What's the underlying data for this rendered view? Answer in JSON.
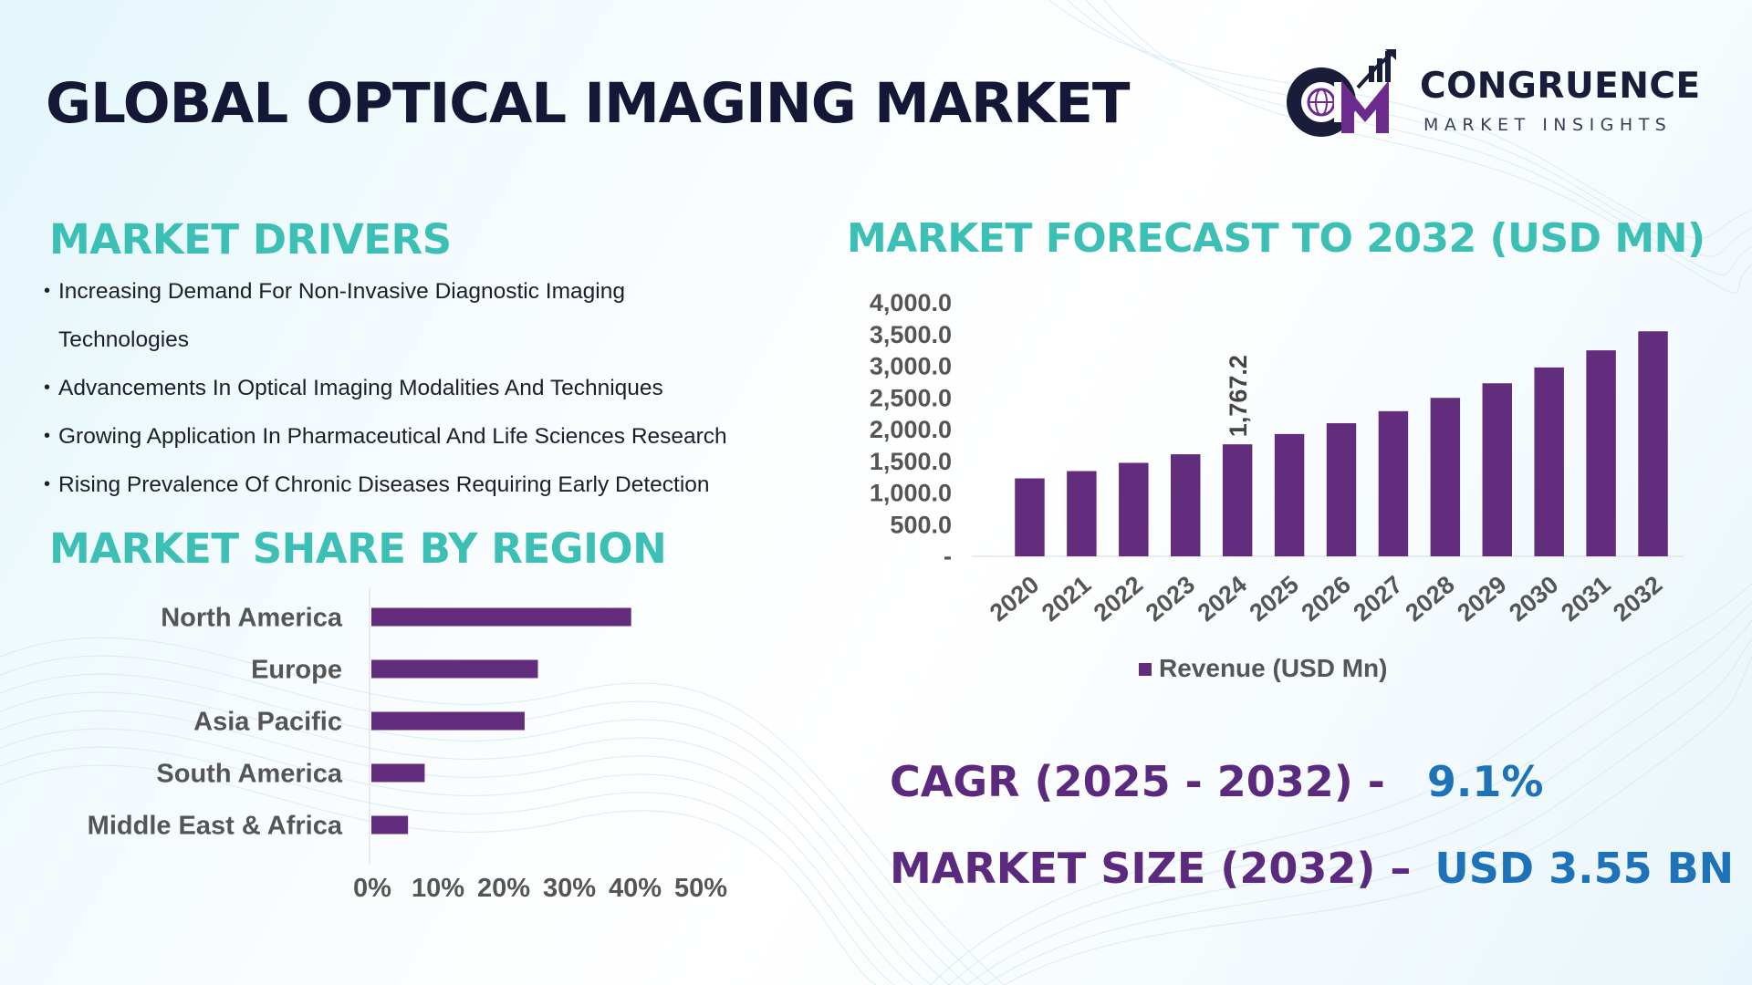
{
  "header": {
    "title": "GLOBAL OPTICAL IMAGING MARKET"
  },
  "logo": {
    "line1": "CONGRUENCE",
    "line2": "MARKET INSIGHTS",
    "colors": {
      "dark": "#1a1d3a",
      "purple": "#6b2b8c"
    }
  },
  "drivers": {
    "title": "MARKET DRIVERS",
    "items": [
      "Increasing Demand For Non-Invasive Diagnostic Imaging Technologies",
      "Advancements In Optical Imaging Modalities And Techniques",
      "Growing Application In Pharmaceutical And Life Sciences Research",
      "Rising Prevalence Of Chronic Diseases Requiring Early Detection"
    ]
  },
  "region": {
    "title": "MARKET SHARE BY REGION"
  },
  "forecast": {
    "title": "MARKET FORECAST TO 2032 (USD MN)"
  },
  "kpis": {
    "cagr_label": "CAGR (2025 - 2032) -",
    "cagr_value": "9.1%",
    "size_label": "MARKET SIZE (2032) –",
    "size_value": "USD 3.55 BN"
  },
  "colors": {
    "bar": "#612d7c",
    "accent_teal": "#3cbfb4",
    "title_dark": "#141836",
    "kpi_label": "#5b2a7e",
    "kpi_value": "#1e72b8"
  },
  "chart_data": [
    {
      "type": "bar",
      "orientation": "vertical",
      "categories": [
        "2020",
        "2021",
        "2022",
        "2023",
        "2024",
        "2025",
        "2026",
        "2027",
        "2028",
        "2029",
        "2030",
        "2031",
        "2032"
      ],
      "series": [
        {
          "name": "Revenue (USD Mn)",
          "values": [
            1230,
            1345,
            1475,
            1610,
            1767.2,
            1930,
            2100,
            2290,
            2500,
            2730,
            2980,
            3250,
            3550
          ]
        }
      ],
      "data_labels": [
        {
          "category": "2024",
          "text": "1,767.2"
        }
      ],
      "y_ticks": [
        "-",
        "500.0",
        "1,000.0",
        "1,500.0",
        "2,000.0",
        "2,500.0",
        "3,000.0",
        "3,500.0",
        "4,000.0"
      ],
      "ylim": [
        0,
        4000
      ],
      "legend": "bottom"
    },
    {
      "type": "bar",
      "orientation": "horizontal",
      "categories": [
        "North America",
        "Europe",
        "Asia Pacific",
        "South America",
        "Middle East & Africa"
      ],
      "values": [
        39,
        25,
        23,
        8,
        5.5
      ],
      "x_ticks": [
        "0%",
        "10%",
        "20%",
        "30%",
        "40%",
        "50%"
      ],
      "xlim": [
        0,
        50
      ]
    }
  ]
}
